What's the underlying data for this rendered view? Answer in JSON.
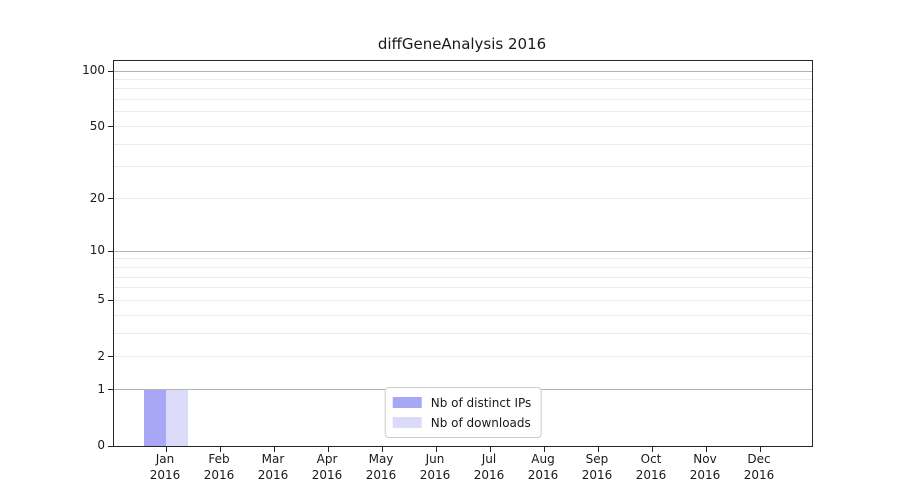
{
  "chart_data": {
    "type": "bar",
    "title": "diffGeneAnalysis 2016",
    "categories": [
      "Jan",
      "Feb",
      "Mar",
      "Apr",
      "May",
      "Jun",
      "Jul",
      "Aug",
      "Sep",
      "Oct",
      "Nov",
      "Dec"
    ],
    "category_year": "2016",
    "series": [
      {
        "name": "Nb of distinct IPs",
        "color": "#a7a7f5",
        "values": [
          1,
          0,
          0,
          0,
          0,
          0,
          0,
          0,
          0,
          0,
          0,
          0
        ]
      },
      {
        "name": "Nb of downloads",
        "color": "#dbdbf9",
        "values": [
          1,
          0,
          0,
          0,
          0,
          0,
          0,
          0,
          0,
          0,
          0,
          0
        ]
      }
    ],
    "xlabel": "",
    "ylabel": "",
    "yscale": "log1p",
    "ylim": [
      0,
      100
    ],
    "y_ticks": [
      0,
      1,
      2,
      5,
      10,
      20,
      50,
      100
    ],
    "grid_major": [
      1,
      10,
      100
    ],
    "grid_minor": [
      2,
      3,
      4,
      5,
      6,
      7,
      8,
      9,
      20,
      30,
      40,
      50,
      60,
      70,
      80,
      90
    ],
    "grid": "on",
    "legend_position": "lower center"
  },
  "colors": {
    "bar_distinct_ips": "#a7a7f5",
    "bar_downloads": "#dbdbf9",
    "grid_major": "#b3b3b3",
    "grid_minor": "#ebebeb",
    "spine": "#262626",
    "text": "#1a1a1a",
    "legend_border": "#cccccc",
    "legend_background": "#ffffff"
  }
}
